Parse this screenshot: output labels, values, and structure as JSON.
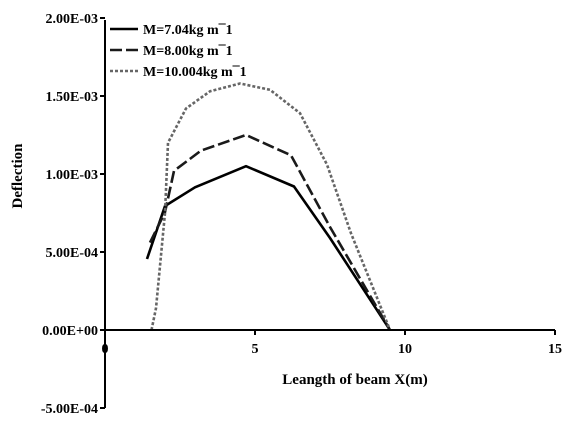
{
  "chart_data": {
    "type": "line",
    "title": "",
    "xlabel": "Leangth of beam X(m)",
    "ylabel": "Deflection",
    "xlim": [
      0,
      15
    ],
    "ylim": [
      -0.0005,
      0.002
    ],
    "x_ticks": [
      0,
      5,
      10,
      15
    ],
    "x_tick_labels": [
      "0",
      "5",
      "10",
      "15"
    ],
    "y_ticks": [
      -0.0005,
      0,
      0.0005,
      0.001,
      0.0015,
      0.002
    ],
    "y_tick_labels": [
      "-5.00E-04",
      "0.00E+00",
      "5.00E-04",
      "1.00E-03",
      "1.50E-03",
      "2.00E-03"
    ],
    "grid": false,
    "legend_position": "top-left",
    "series": [
      {
        "name": "M=7.04kg m¯1",
        "style": "solid",
        "color": "#000000",
        "points": [
          [
            1.4,
            0.000455
          ],
          [
            2.0,
            0.000795
          ],
          [
            3.0,
            0.000915
          ],
          [
            4.7,
            0.00105
          ],
          [
            6.3,
            0.00092
          ],
          [
            7.5,
            0.00059
          ],
          [
            9.5,
            0.0
          ]
        ]
      },
      {
        "name": "M=8.00kg m¯1",
        "style": "dashed",
        "color": "#1a1a1a",
        "points": [
          [
            1.5,
            0.00056
          ],
          [
            2.0,
            0.000755
          ],
          [
            2.3,
            0.00102
          ],
          [
            3.2,
            0.00115
          ],
          [
            4.7,
            0.00125
          ],
          [
            6.2,
            0.00112
          ],
          [
            7.5,
            0.00066
          ],
          [
            9.5,
            0.0
          ]
        ]
      },
      {
        "name": "M=10.004kg m¯1",
        "style": "dotted",
        "color": "#666666",
        "points": [
          [
            1.55,
            0.0
          ],
          [
            1.7,
            0.00014
          ],
          [
            2.0,
            0.00075
          ],
          [
            2.1,
            0.0012
          ],
          [
            2.7,
            0.00142
          ],
          [
            3.5,
            0.00153
          ],
          [
            4.5,
            0.00158
          ],
          [
            5.5,
            0.00154
          ],
          [
            6.5,
            0.00139
          ],
          [
            7.4,
            0.00106
          ],
          [
            8.2,
            0.00062
          ],
          [
            9.5,
            0.0
          ]
        ]
      }
    ]
  }
}
